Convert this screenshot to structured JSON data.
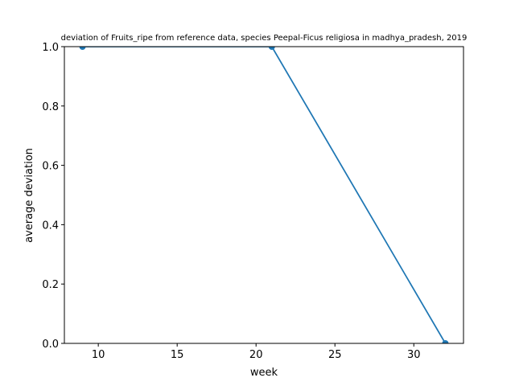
{
  "chart_data": {
    "type": "line",
    "title": "deviation of Fruits_ripe from reference data, species Peepal-Ficus religiosa in madhya_pradesh, 2019",
    "xlabel": "week",
    "ylabel": "average deviation",
    "xlim": [
      7.85,
      33.15
    ],
    "ylim": [
      0.0,
      1.0
    ],
    "xticks": [
      10,
      15,
      20,
      25,
      30
    ],
    "xtick_labels": [
      "10",
      "15",
      "20",
      "25",
      "30"
    ],
    "yticks": [
      0.0,
      0.2,
      0.4,
      0.6,
      0.8,
      1.0
    ],
    "ytick_labels": [
      "0.0",
      "0.2",
      "0.4",
      "0.6",
      "0.8",
      "1.0"
    ],
    "grid": false,
    "series": [
      {
        "x": [
          9,
          21,
          32
        ],
        "y": [
          1.0,
          1.0,
          0.0
        ],
        "color": "#1f77b4",
        "marker": "circle"
      }
    ]
  }
}
